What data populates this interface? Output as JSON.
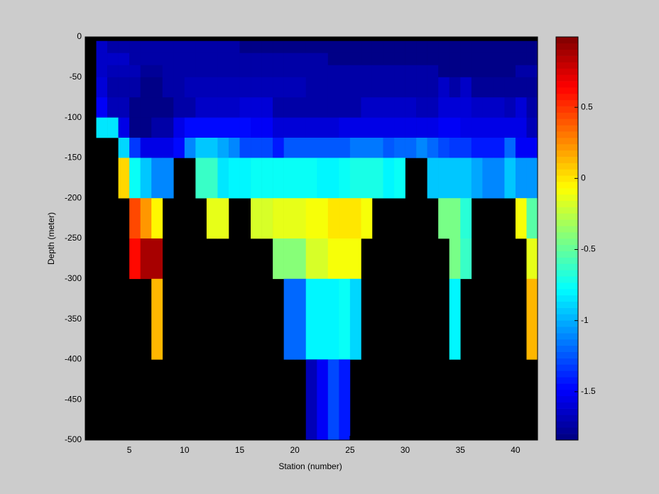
{
  "chart_data": {
    "type": "heatmap",
    "xlabel": "Station (number)",
    "ylabel": "Depth (meter)",
    "x": [
      1,
      2,
      3,
      4,
      5,
      6,
      7,
      8,
      9,
      10,
      11,
      12,
      13,
      14,
      15,
      16,
      17,
      18,
      19,
      20,
      21,
      22,
      23,
      24,
      25,
      26,
      27,
      28,
      29,
      30,
      31,
      32,
      33,
      34,
      35,
      36,
      37,
      38,
      39,
      40,
      41,
      42
    ],
    "y": [
      0,
      -5,
      -20,
      -35,
      -50,
      -75,
      -100,
      -125,
      -150,
      -200,
      -250,
      -300,
      -400,
      -500
    ],
    "z": [
      [
        null,
        null,
        null,
        null,
        null,
        null,
        null,
        null,
        null,
        null,
        null,
        null,
        null,
        null,
        null,
        null,
        null,
        null,
        null,
        null,
        null,
        null,
        null,
        null,
        null,
        null,
        null,
        null,
        null,
        null,
        null,
        null,
        null,
        null,
        null,
        null,
        null,
        null,
        null,
        null,
        null
      ],
      [
        null,
        -1.65,
        -1.72,
        -1.72,
        -1.72,
        -1.72,
        -1.72,
        -1.72,
        -1.72,
        -1.72,
        -1.72,
        -1.72,
        -1.72,
        -1.72,
        -1.82,
        -1.82,
        -1.82,
        -1.82,
        -1.82,
        -1.82,
        -1.82,
        -1.82,
        -1.82,
        -1.82,
        -1.82,
        -1.82,
        -1.82,
        -1.82,
        -1.82,
        -1.82,
        -1.82,
        -1.82,
        -1.82,
        -1.82,
        -1.82,
        -1.82,
        -1.82,
        -1.82,
        -1.82,
        -1.82,
        -1.82
      ],
      [
        null,
        -1.65,
        -1.65,
        -1.65,
        -1.72,
        -1.72,
        -1.72,
        -1.72,
        -1.72,
        -1.72,
        -1.72,
        -1.72,
        -1.72,
        -1.72,
        -1.72,
        -1.72,
        -1.72,
        -1.72,
        -1.72,
        -1.72,
        -1.72,
        -1.72,
        -1.82,
        -1.82,
        -1.82,
        -1.82,
        -1.82,
        -1.82,
        -1.82,
        -1.82,
        -1.82,
        -1.82,
        -1.82,
        -1.82,
        -1.82,
        -1.82,
        -1.82,
        -1.82,
        -1.82,
        -1.82,
        -1.82
      ],
      [
        null,
        -1.65,
        -1.7,
        -1.7,
        -1.7,
        -1.78,
        -1.78,
        -1.75,
        -1.75,
        -1.75,
        -1.75,
        -1.75,
        -1.75,
        -1.75,
        -1.75,
        -1.75,
        -1.75,
        -1.75,
        -1.75,
        -1.75,
        -1.75,
        -1.75,
        -1.75,
        -1.75,
        -1.75,
        -1.75,
        -1.75,
        -1.75,
        -1.75,
        -1.75,
        -1.75,
        -1.72,
        -1.82,
        -1.82,
        -1.82,
        -1.82,
        -1.82,
        -1.82,
        -1.82,
        -1.75,
        -1.75
      ],
      [
        null,
        -1.6,
        -1.72,
        -1.72,
        -1.75,
        -1.82,
        -1.82,
        -1.72,
        -1.72,
        -1.7,
        -1.7,
        -1.7,
        -1.7,
        -1.7,
        -1.7,
        -1.7,
        -1.7,
        -1.7,
        -1.7,
        -1.7,
        -1.72,
        -1.72,
        -1.72,
        -1.72,
        -1.72,
        -1.72,
        -1.72,
        -1.72,
        -1.72,
        -1.72,
        -1.72,
        -1.75,
        -1.65,
        -1.75,
        -1.65,
        -1.78,
        -1.78,
        -1.78,
        -1.78,
        -1.78,
        -1.78
      ],
      [
        null,
        -1.5,
        -1.68,
        -1.68,
        -1.8,
        -1.82,
        -1.82,
        -1.82,
        -1.72,
        -1.72,
        -1.65,
        -1.65,
        -1.65,
        -1.65,
        -1.6,
        -1.6,
        -1.6,
        -1.72,
        -1.72,
        -1.72,
        -1.72,
        -1.72,
        -1.72,
        -1.72,
        -1.72,
        -1.65,
        -1.65,
        -1.65,
        -1.65,
        -1.65,
        -1.7,
        -1.7,
        -1.58,
        -1.58,
        -1.58,
        -1.62,
        -1.62,
        -1.62,
        -1.7,
        -1.6,
        -1.75
      ],
      [
        null,
        -0.85,
        -0.85,
        -1.55,
        -1.8,
        -1.8,
        -1.72,
        -1.72,
        -1.55,
        -1.45,
        -1.45,
        -1.45,
        -1.45,
        -1.45,
        -1.45,
        -1.5,
        -1.5,
        -1.6,
        -1.6,
        -1.6,
        -1.6,
        -1.6,
        -1.6,
        -1.55,
        -1.55,
        -1.55,
        -1.55,
        -1.55,
        -1.55,
        -1.55,
        -1.55,
        -1.55,
        -1.5,
        -1.5,
        -1.55,
        -1.55,
        -1.55,
        -1.55,
        -1.55,
        -1.55,
        -1.7
      ],
      [
        null,
        null,
        null,
        -0.9,
        -1.35,
        -1.55,
        -1.55,
        -1.55,
        -1.45,
        -1.1,
        -0.95,
        -0.95,
        -1.0,
        -1.1,
        -1.3,
        -1.3,
        -1.3,
        -1.4,
        -1.25,
        -1.25,
        -1.25,
        -1.25,
        -1.25,
        -1.25,
        -1.15,
        -1.15,
        -1.15,
        -1.25,
        -1.2,
        -1.2,
        -1.1,
        -1.2,
        -1.3,
        -1.35,
        -1.35,
        -1.4,
        -1.4,
        -1.4,
        -1.2,
        -1.5,
        -1.5
      ],
      [
        null,
        null,
        null,
        0.05,
        -0.75,
        -0.95,
        -1.1,
        -1.1,
        null,
        null,
        -0.6,
        -0.6,
        -0.85,
        -0.8,
        -0.8,
        -0.75,
        -0.75,
        -0.75,
        -0.75,
        -0.75,
        -0.75,
        -0.8,
        -0.8,
        -0.75,
        -0.7,
        -0.7,
        -0.7,
        -0.8,
        -0.75,
        null,
        null,
        -0.95,
        -0.95,
        -0.95,
        -0.95,
        -1.0,
        -1.1,
        -1.1,
        -0.95,
        -1.05,
        -1.05
      ],
      [
        null,
        null,
        null,
        null,
        0.45,
        0.2,
        -0.05,
        null,
        null,
        null,
        null,
        -0.15,
        -0.15,
        null,
        null,
        -0.2,
        -0.2,
        -0.15,
        -0.15,
        -0.15,
        -0.1,
        -0.1,
        0.0,
        0.0,
        0.0,
        -0.1,
        null,
        null,
        null,
        null,
        null,
        null,
        -0.45,
        -0.45,
        -0.65,
        null,
        null,
        null,
        null,
        -0.1,
        -0.55
      ],
      [
        null,
        null,
        null,
        null,
        0.6,
        0.9,
        0.9,
        null,
        null,
        null,
        null,
        null,
        null,
        null,
        null,
        null,
        null,
        -0.38,
        -0.38,
        -0.38,
        -0.2,
        -0.2,
        -0.1,
        -0.1,
        -0.1,
        null,
        null,
        null,
        null,
        null,
        null,
        null,
        null,
        -0.45,
        -0.6,
        null,
        null,
        null,
        null,
        null,
        -0.15
      ],
      [
        null,
        null,
        null,
        null,
        null,
        null,
        0.15,
        null,
        null,
        null,
        null,
        null,
        null,
        null,
        null,
        null,
        null,
        null,
        -1.2,
        -1.2,
        -0.8,
        -0.8,
        -0.8,
        -0.75,
        -0.9,
        null,
        null,
        null,
        null,
        null,
        null,
        null,
        null,
        -0.8,
        null,
        null,
        null,
        null,
        null,
        null,
        0.15
      ],
      [
        null,
        null,
        null,
        null,
        null,
        null,
        null,
        null,
        null,
        null,
        null,
        null,
        null,
        null,
        null,
        null,
        null,
        null,
        null,
        null,
        -1.7,
        -1.5,
        -1.3,
        -1.4,
        null,
        null,
        null,
        null,
        null,
        null,
        null,
        null,
        null,
        null,
        null,
        null,
        null,
        null,
        null,
        null,
        null
      ]
    ],
    "xlim": [
      1,
      42
    ],
    "ylim": [
      -500,
      0
    ],
    "xticks": [
      5,
      10,
      15,
      20,
      25,
      30,
      35,
      40
    ],
    "yticks": [
      0,
      -50,
      -100,
      -150,
      -200,
      -250,
      -300,
      -350,
      -400,
      -450,
      -500
    ],
    "colormap": "jet",
    "clim": [
      -1.84,
      0.995
    ],
    "cticks": [
      -1.5,
      -1,
      -0.5,
      0,
      0.5
    ],
    "nan_color": "#000000"
  }
}
